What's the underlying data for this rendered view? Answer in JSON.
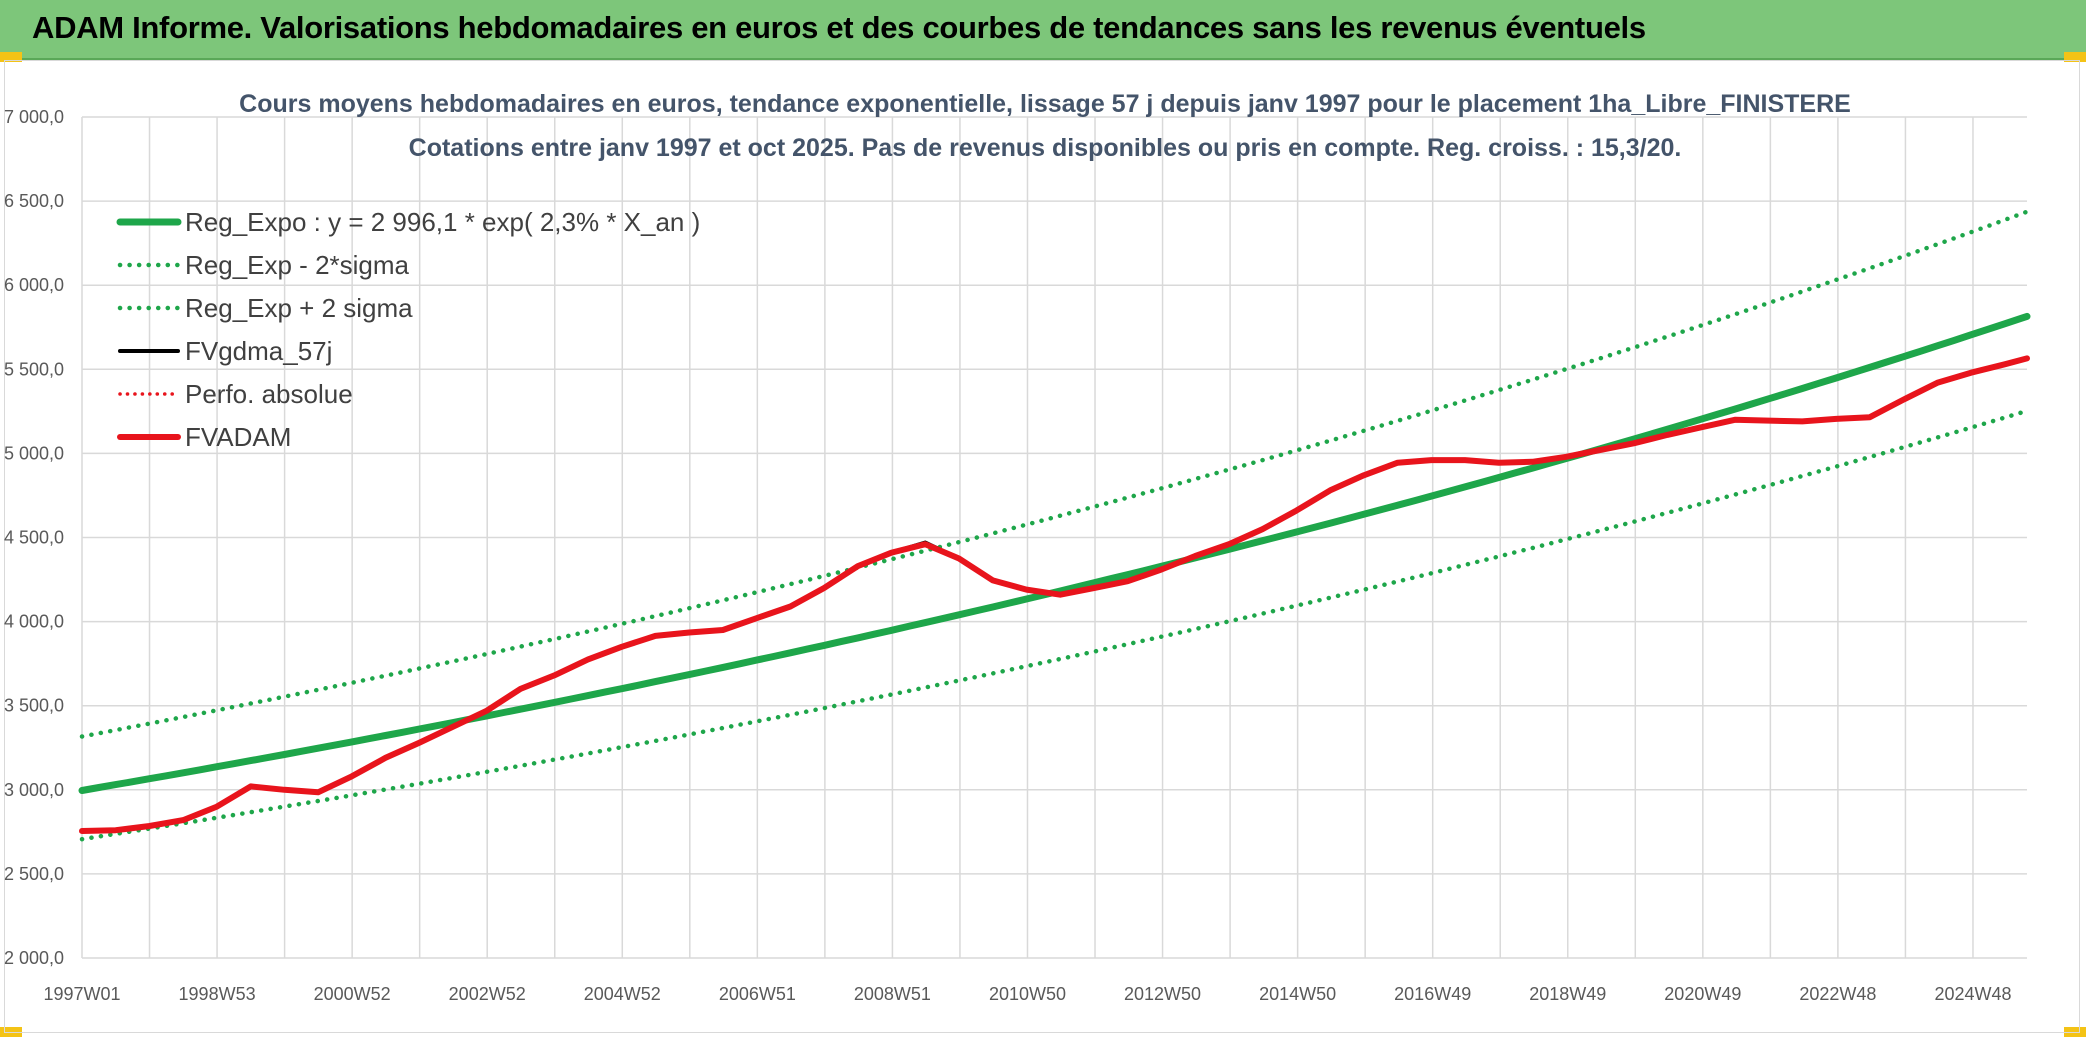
{
  "banner": {
    "title": "ADAM Informe. Valorisations hebdomadaires en euros et des courbes de tendances sans les revenus éventuels",
    "accent": "#7dc67a",
    "corner_color": "#f4c316"
  },
  "chart_data": {
    "type": "line",
    "title": "Cours moyens hebdomadaires en euros, tendance exponentielle, lissage 57 j depuis janv 1997 pour le placement 1ha_Libre_FINISTERE",
    "subtitle": "Cotations entre janv 1997 et oct 2025. Pas de revenus disponibles ou pris en compte. Reg. croiss. : 15,3/20.",
    "xlabel": "",
    "ylabel": "",
    "xlim": [
      1997.0,
      2025.83
    ],
    "ylim": [
      2000,
      7000
    ],
    "ytick_step": 500,
    "grid": true,
    "x_tick_labels": [
      "1997W01",
      "1998W53",
      "2000W52",
      "2002W52",
      "2004W52",
      "2006W51",
      "2008W51",
      "2010W50",
      "2012W50",
      "2014W50",
      "2016W49",
      "2018W49",
      "2020W49",
      "2022W48",
      "2024W48"
    ],
    "y_tick_labels": [
      "2 000,0",
      "2 500,0",
      "3 000,0",
      "3 500,0",
      "4 000,0",
      "4 500,0",
      "5 000,0",
      "5 500,0",
      "6 000,0",
      "6 500,0",
      "7 000,0"
    ],
    "legend_position": "top-left",
    "regression": {
      "a": 2996.1,
      "rate": 0.023,
      "sigma_factor": 1.107
    },
    "series": [
      {
        "name": "Reg_Expo : y = 2 996,1 * exp( 2,3% *  X_an )",
        "kind": "reg",
        "color": "#1ea64a",
        "dash": "solid",
        "width": 7
      },
      {
        "name": "Reg_Exp - 2*sigma",
        "kind": "reg_low",
        "color": "#1ea64a",
        "dash": "dotted",
        "width": 4.5
      },
      {
        "name": "Reg_Exp + 2 sigma",
        "kind": "reg_high",
        "color": "#1ea64a",
        "dash": "dotted",
        "width": 4.5
      },
      {
        "name": "FVgdma_57j",
        "kind": "data",
        "color": "#000000",
        "dash": "solid",
        "width": 4,
        "x": [
          1997.0,
          1997.5,
          1998.0,
          1998.5,
          1999.0,
          1999.5,
          2000.0,
          2000.5,
          2001.0,
          2001.5,
          2002.0,
          2002.5,
          2003.0,
          2003.5,
          2004.0,
          2004.5,
          2005.0,
          2005.5,
          2006.0,
          2006.5,
          2007.0,
          2007.5,
          2008.0,
          2008.5,
          2009.0,
          2009.5,
          2010.0,
          2010.5,
          2011.0,
          2011.5,
          2012.0,
          2012.5,
          2013.0,
          2013.5,
          2014.0,
          2014.5,
          2015.0,
          2015.5,
          2016.0,
          2016.5,
          2017.0,
          2017.5,
          2018.0,
          2018.5,
          2019.0,
          2019.5,
          2020.0,
          2020.5,
          2021.0,
          2021.5,
          2022.0,
          2022.5,
          2023.0,
          2023.5,
          2024.0,
          2024.5,
          2025.0,
          2025.5,
          2025.83
        ],
        "values": [
          2755,
          2760,
          2785,
          2820,
          2900,
          3020,
          3000,
          2985,
          3080,
          3190,
          3280,
          3375,
          3470,
          3600,
          3680,
          3775,
          3850,
          3915,
          3935,
          3950,
          4020,
          4090,
          4200,
          4330,
          4410,
          4470,
          4375,
          4245,
          4190,
          4160,
          4200,
          4240,
          4310,
          4390,
          4460,
          4550,
          4660,
          4780,
          4870,
          4945,
          4960,
          4960,
          4945,
          4950,
          4980,
          5020,
          5060,
          5110,
          5155,
          5200,
          5195,
          5190,
          5205,
          5215,
          5320,
          5420,
          5480,
          5530,
          5565
        ]
      },
      {
        "name": "Perfo. absolue",
        "kind": "legend_only",
        "color": "#e8141c",
        "dash": "dotted",
        "width": 3.5
      },
      {
        "name": "FVADAM",
        "kind": "data",
        "color": "#e8141c",
        "dash": "solid",
        "width": 6,
        "x": [
          1997.0,
          1997.5,
          1998.0,
          1998.5,
          1999.0,
          1999.5,
          2000.0,
          2000.5,
          2001.0,
          2001.5,
          2002.0,
          2002.5,
          2003.0,
          2003.5,
          2004.0,
          2004.5,
          2005.0,
          2005.5,
          2006.0,
          2006.5,
          2007.0,
          2007.5,
          2008.0,
          2008.5,
          2009.0,
          2009.5,
          2010.0,
          2010.5,
          2011.0,
          2011.5,
          2012.0,
          2012.5,
          2013.0,
          2013.5,
          2014.0,
          2014.5,
          2015.0,
          2015.5,
          2016.0,
          2016.5,
          2017.0,
          2017.5,
          2018.0,
          2018.5,
          2019.0,
          2019.5,
          2020.0,
          2020.5,
          2021.0,
          2021.5,
          2022.0,
          2022.5,
          2023.0,
          2023.5,
          2024.0,
          2024.5,
          2025.0,
          2025.5,
          2025.83
        ],
        "values": [
          2755,
          2760,
          2785,
          2820,
          2900,
          3020,
          3000,
          2985,
          3080,
          3190,
          3280,
          3375,
          3470,
          3600,
          3680,
          3775,
          3850,
          3915,
          3935,
          3950,
          4020,
          4090,
          4200,
          4330,
          4410,
          4460,
          4375,
          4245,
          4190,
          4160,
          4200,
          4240,
          4310,
          4390,
          4460,
          4550,
          4660,
          4780,
          4870,
          4945,
          4960,
          4960,
          4945,
          4950,
          4980,
          5020,
          5060,
          5110,
          5155,
          5200,
          5195,
          5190,
          5205,
          5215,
          5320,
          5420,
          5480,
          5530,
          5565
        ]
      }
    ]
  }
}
